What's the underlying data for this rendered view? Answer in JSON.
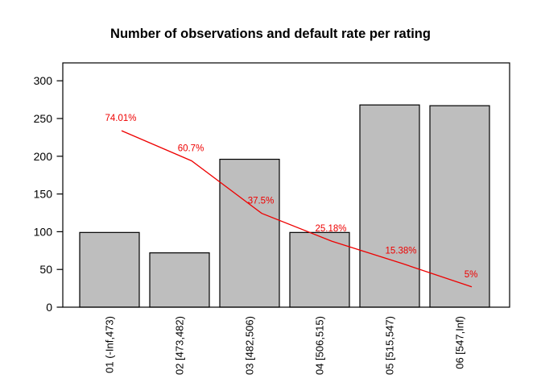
{
  "chart_data": {
    "type": "bar",
    "title": "Number of observations and default rate per rating",
    "categories": [
      "01 (-Inf,473)",
      "02 [473,482)",
      "03 [482,506)",
      "04 [506,515)",
      "05 [515,547)",
      "06 [547,Inf)"
    ],
    "series": [
      {
        "name": "number-of-observations",
        "type": "bar",
        "values": [
          99,
          72,
          196,
          99,
          268,
          267
        ]
      },
      {
        "name": "default-rate",
        "type": "line",
        "values_pct": [
          74.01,
          60.7,
          37.5,
          25.18,
          15.38,
          5
        ],
        "labels": [
          "74.01%",
          "60.7%",
          "37.5%",
          "25.18%",
          "15.38%",
          "5%"
        ]
      }
    ],
    "xlabel": "",
    "ylabel": "",
    "ylim": [
      0,
      300
    ],
    "yticks": [
      0,
      50,
      100,
      150,
      200,
      250,
      300
    ],
    "line_axis": {
      "min_pct": 0,
      "max_pct": 100
    },
    "grid": false,
    "legend": false,
    "colors": {
      "bar_fill": "#bebebe",
      "bar_border": "#000000",
      "line": "#ee0000",
      "line_label": "#ee0000",
      "axis": "#000000",
      "title": "#000000",
      "background": "#ffffff"
    }
  }
}
